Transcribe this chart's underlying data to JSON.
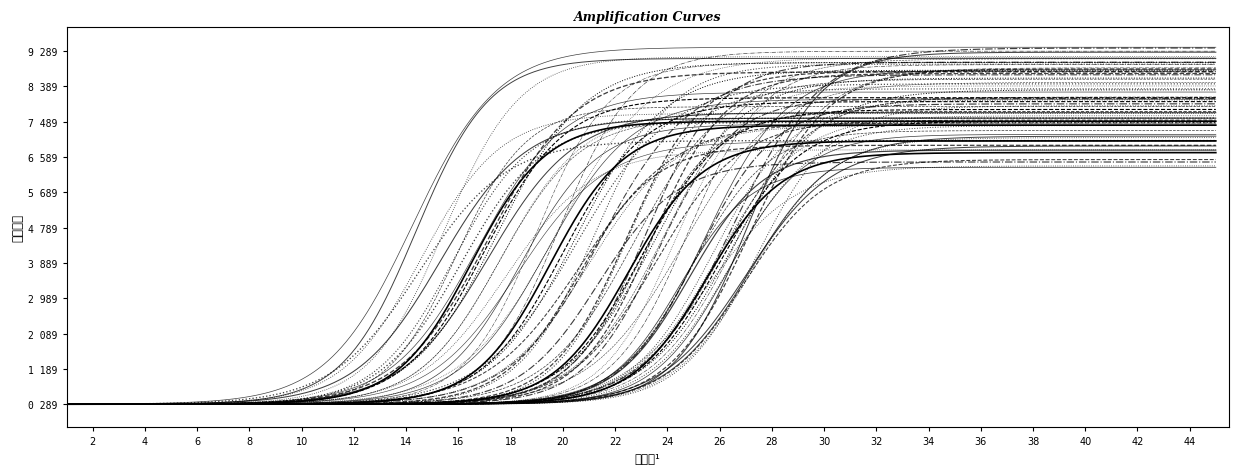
{
  "title": "Amplification Curves",
  "xlabel": "循环数¹",
  "ylabel": "荧光强度",
  "x_ticks": [
    2,
    4,
    6,
    8,
    10,
    12,
    14,
    16,
    18,
    20,
    22,
    24,
    26,
    28,
    30,
    32,
    34,
    36,
    38,
    40,
    42,
    44
  ],
  "y_ticks": [
    0.289,
    1.189,
    2.089,
    2.989,
    3.889,
    4.789,
    5.689,
    6.589,
    7.489,
    8.389,
    9.289
  ],
  "ylim": [
    -0.3,
    9.9
  ],
  "xlim": [
    1,
    45.5
  ],
  "baseline": 0.289,
  "background_color": "#ffffff",
  "line_color": "#000000",
  "title_fontsize": 9,
  "axis_fontsize": 8.5,
  "tick_fontsize": 7
}
